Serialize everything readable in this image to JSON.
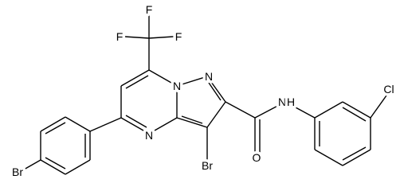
{
  "atoms": [
    {
      "label": "F"
    },
    {
      "label": "F"
    },
    {
      "label": "F"
    },
    {
      "label": "N"
    },
    {
      "label": "N"
    },
    {
      "label": "N"
    },
    {
      "label": "Br"
    },
    {
      "label": "O"
    },
    {
      "label": "N"
    },
    {
      "label": "H"
    },
    {
      "label": "Cl"
    },
    {
      "label": "Br"
    }
  ]
}
